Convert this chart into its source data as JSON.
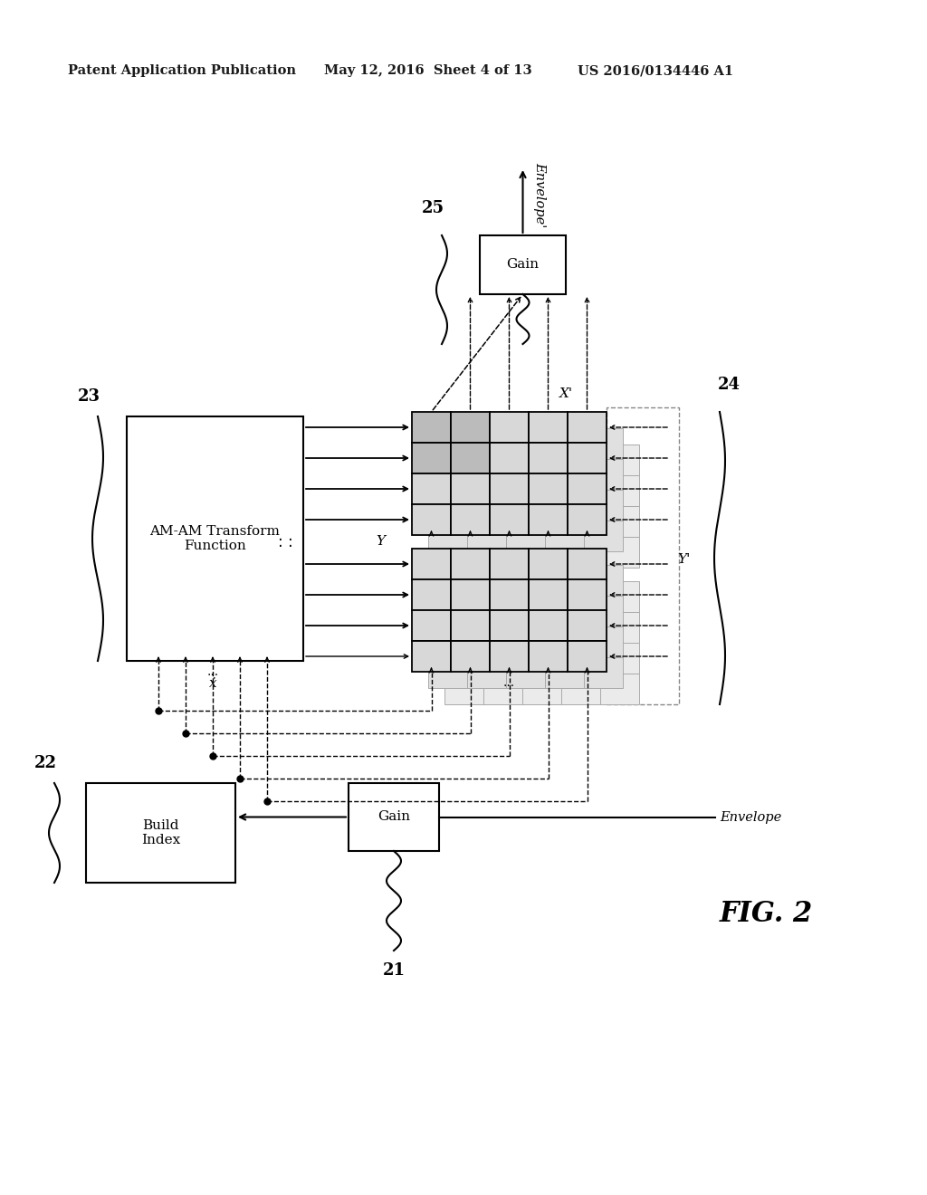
{
  "bg_color": "#ffffff",
  "header_left": "Patent Application Publication",
  "header_mid": "May 12, 2016  Sheet 4 of 13",
  "header_right": "US 2016/0134446 A1",
  "fig_label": "FIG. 2",
  "label_23": "23",
  "label_22": "22",
  "label_24": "24",
  "label_25": "25",
  "label_21": "21",
  "box_amam": "AM-AM Transform\nFunction",
  "box_build": "Build\nIndex",
  "box_gain_top": "Gain",
  "box_gain_bot": "Gain",
  "label_x": "X",
  "label_y": "Y",
  "label_xprime": "X'",
  "label_yprime": "Y'",
  "label_envelope_top": "Envelope'",
  "label_envelope_bot": "Envelope"
}
